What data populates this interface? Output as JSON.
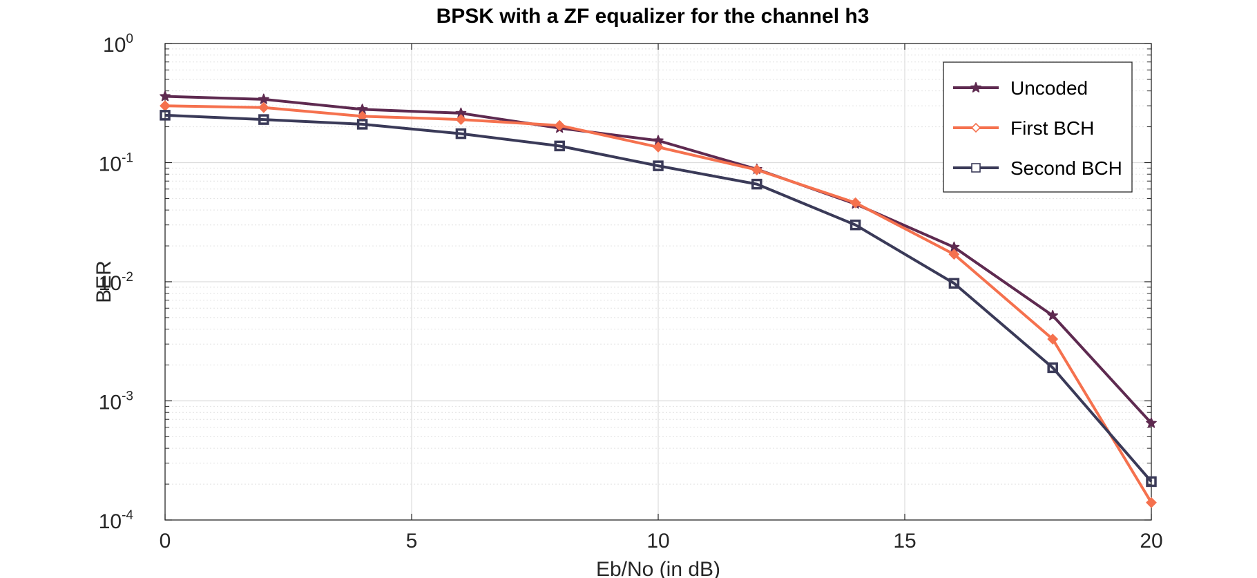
{
  "chart_data": {
    "type": "line",
    "title": "BPSK with a ZF equalizer for the channel h3",
    "xlabel": "Eb/No (in dB)",
    "ylabel": "BER",
    "xlim": [
      0,
      20
    ],
    "ylim": [
      0.0001,
      1
    ],
    "yscale": "log",
    "grid": true,
    "legend_position": "top-right",
    "x": [
      0,
      2,
      4,
      6,
      8,
      10,
      12,
      14,
      16,
      18,
      20
    ],
    "x_ticks": [
      "0",
      "5",
      "10",
      "15",
      "20"
    ],
    "y_tick_base": "10",
    "y_tick_exponents": [
      "0",
      "-1",
      "-2",
      "-3",
      "-4"
    ],
    "series": [
      {
        "name": "Uncoded",
        "marker": "star",
        "color": "#5e2a50",
        "values": [
          0.36,
          0.34,
          0.28,
          0.26,
          0.195,
          0.153,
          0.088,
          0.045,
          0.0195,
          0.0052,
          0.00065
        ]
      },
      {
        "name": "First BCH",
        "marker": "diamond",
        "color": "#f5714e",
        "values": [
          0.3,
          0.29,
          0.245,
          0.23,
          0.205,
          0.135,
          0.087,
          0.046,
          0.017,
          0.0033,
          0.00014
        ]
      },
      {
        "name": "Second BCH",
        "marker": "square",
        "color": "#3a3a58",
        "values": [
          0.25,
          0.23,
          0.21,
          0.175,
          0.138,
          0.094,
          0.066,
          0.03,
          0.0097,
          0.0019,
          0.00021
        ]
      }
    ]
  }
}
